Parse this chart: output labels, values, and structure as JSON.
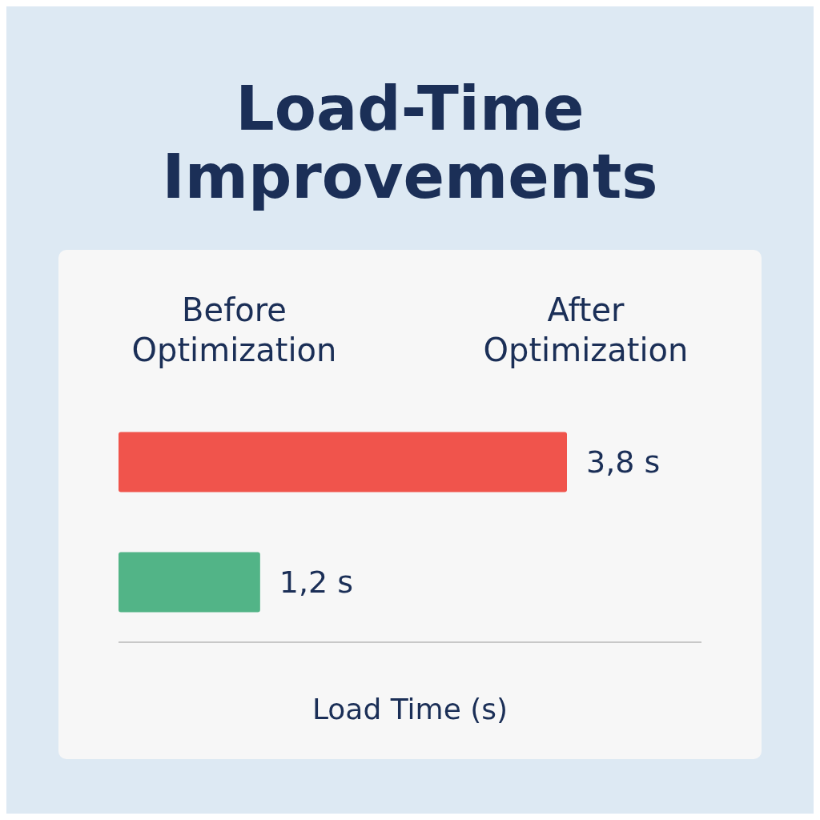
{
  "chart_data": {
    "type": "bar",
    "orientation": "horizontal",
    "title": "Load-Time Improvements",
    "xlabel": "Load Time (s)",
    "categories": [
      null,
      null
    ],
    "annotations": [
      "Before Optimization",
      "After Optimization"
    ],
    "values": [
      3.8,
      1.2
    ],
    "colors": [
      "#f0544c",
      "#52b487"
    ],
    "value_labels": [
      "3,8 s",
      "1,2 s"
    ],
    "tick_labels": false,
    "grid": false,
    "legend": false
  }
}
